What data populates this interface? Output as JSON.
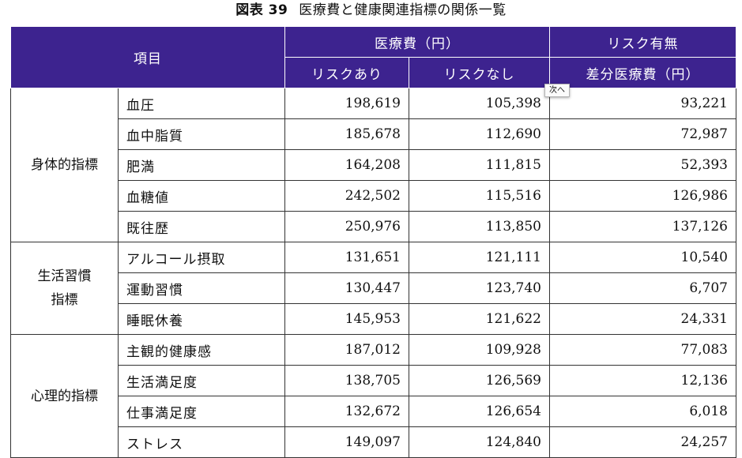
{
  "caption": {
    "figure_label": "図表 39",
    "title": "医療費と健康関連指標の関係一覧"
  },
  "header": {
    "item": "項目",
    "medical_cost": "医療費（円）",
    "with_risk": "リスクあり",
    "without_risk": "リスクなし",
    "risk_presence": "リスク有無",
    "difference": "差分医療費（円）"
  },
  "groups": [
    {
      "label": "身体的指標",
      "rows": [
        {
          "item": "血圧",
          "with": "198,619",
          "without": "105,398",
          "diff": "93,221"
        },
        {
          "item": "血中脂質",
          "with": "185,678",
          "without": "112,690",
          "diff": "72,987"
        },
        {
          "item": "肥満",
          "with": "164,208",
          "without": "111,815",
          "diff": "52,393"
        },
        {
          "item": "血糖値",
          "with": "242,502",
          "without": "115,516",
          "diff": "126,986"
        },
        {
          "item": "既往歴",
          "with": "250,976",
          "without": "113,850",
          "diff": "137,126"
        }
      ]
    },
    {
      "label": "生活習慣指標",
      "label_line1": "生活習慣",
      "label_line2": "指標",
      "rows": [
        {
          "item": "アルコール摂取",
          "with": "131,651",
          "without": "121,111",
          "diff": "10,540"
        },
        {
          "item": "運動習慣",
          "with": "130,447",
          "without": "123,740",
          "diff": "6,707"
        },
        {
          "item": "睡眠休養",
          "with": "145,953",
          "without": "121,622",
          "diff": "24,331"
        }
      ]
    },
    {
      "label": "心理的指標",
      "rows": [
        {
          "item": "主観的健康感",
          "with": "187,012",
          "without": "109,928",
          "diff": "77,083"
        },
        {
          "item": "生活満足度",
          "with": "138,705",
          "without": "126,569",
          "diff": "12,136"
        },
        {
          "item": "仕事満足度",
          "with": "132,672",
          "without": "126,654",
          "diff": "6,018"
        },
        {
          "item": "ストレス",
          "with": "149,097",
          "without": "124,840",
          "diff": "24,257"
        }
      ]
    }
  ],
  "tooltip": {
    "text": "次へ"
  },
  "colors": {
    "header_bg": "#3d238f",
    "header_text": "#ffffff"
  }
}
